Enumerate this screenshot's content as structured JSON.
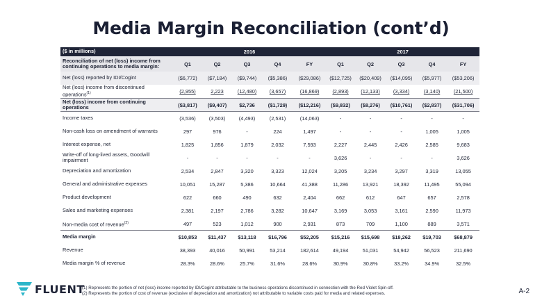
{
  "title": "Media Margin Reconciliation (cont’d)",
  "table": {
    "header": {
      "units": "($ in millions)",
      "year_2016": "2016",
      "year_2017": "2017",
      "section_label": "Reconciliation of net (loss) income from continuing operations to media margin:",
      "periods": [
        "Q1",
        "Q2",
        "Q3",
        "Q4",
        "FY",
        "Q1",
        "Q2",
        "Q3",
        "Q4",
        "FY"
      ]
    },
    "rows": [
      {
        "label": "Net (loss) reported by IDI/Cogint",
        "values": [
          "($6,772)",
          "($7,184)",
          "($9,744)",
          "($5,386)",
          "($29,086)",
          "($12,725)",
          "($20,409)",
          "($14,095)",
          "($5,977)",
          "($53,206)"
        ]
      },
      {
        "label": "Net (loss) income from discontinued operations",
        "label_sup": "(1)",
        "values": [
          "(2,955)",
          "2,223",
          "(12,480)",
          "(3,657)",
          "(16,869)",
          "(2,893)",
          "(12,133)",
          "(3,334)",
          "(3,140)",
          "(21,500)"
        ]
      },
      {
        "label": "Net (loss) income from continuing operations",
        "values": [
          "($3,817)",
          "($9,407)",
          "$2,736",
          "($1,729)",
          "($12,216)",
          "($9,832)",
          "($8,276)",
          "($10,761)",
          "($2,837)",
          "($31,706)"
        ]
      },
      {
        "label": "Income taxes",
        "values": [
          "(3,536)",
          "(3,503)",
          "(4,493)",
          "(2,531)",
          "(14,063)",
          "-",
          "-",
          "-",
          "-",
          "-"
        ]
      },
      {
        "label": "Non-cash loss on amendment of warrants",
        "values": [
          "297",
          "976",
          "-",
          "224",
          "1,497",
          "-",
          "-",
          "-",
          "1,005",
          "1,005"
        ]
      },
      {
        "label": "Interest expense, net",
        "values": [
          "1,825",
          "1,856",
          "1,879",
          "2,032",
          "7,593",
          "2,227",
          "2,445",
          "2,426",
          "2,585",
          "9,683"
        ]
      },
      {
        "label": "Write-off of long-lived assets, Goodwill impairment",
        "values": [
          "-",
          "-",
          "-",
          "-",
          "-",
          "3,626",
          "-",
          "-",
          "-",
          "3,626"
        ]
      },
      {
        "label": "Depreciation and amortization",
        "values": [
          "2,534",
          "2,847",
          "3,320",
          "3,323",
          "12,024",
          "3,205",
          "3,234",
          "3,297",
          "3,319",
          "13,055"
        ]
      },
      {
        "label": "General and administrative expenses",
        "values": [
          "10,051",
          "15,287",
          "5,386",
          "10,664",
          "41,388",
          "11,286",
          "13,921",
          "18,392",
          "11,495",
          "55,094"
        ]
      },
      {
        "label": "Product development",
        "values": [
          "622",
          "660",
          "490",
          "632",
          "2,404",
          "662",
          "612",
          "647",
          "657",
          "2,578"
        ]
      },
      {
        "label": "Sales and marketing expenses",
        "values": [
          "2,381",
          "2,197",
          "2,786",
          "3,282",
          "10,647",
          "3,169",
          "3,053",
          "3,161",
          "2,590",
          "11,973"
        ]
      },
      {
        "label": "Non-media cost of revenue",
        "label_sup": "(2)",
        "values": [
          "497",
          "523",
          "1,012",
          "900",
          "2,931",
          "873",
          "709",
          "1,100",
          "889",
          "3,571"
        ]
      },
      {
        "label": "Media margin",
        "values": [
          "$10,853",
          "$11,437",
          "$13,118",
          "$16,796",
          "$52,205",
          "$15,216",
          "$15,698",
          "$18,262",
          "$19,703",
          "$68,879"
        ]
      },
      {
        "label": "Revenue",
        "values": [
          "38,393",
          "40,016",
          "50,991",
          "53,214",
          "182,614",
          "49,194",
          "51,031",
          "54,942",
          "56,523",
          "211,690"
        ]
      },
      {
        "label": "Media margin % of revenue",
        "values": [
          "28.3%",
          "28.6%",
          "25.7%",
          "31.6%",
          "28.6%",
          "30.9%",
          "30.8%",
          "33.2%",
          "34.9%",
          "32.5%"
        ]
      }
    ]
  },
  "logo": {
    "text": "FLUENT",
    "color": "#2bb5c9"
  },
  "footnotes": [
    "(1) Represents the portion of net (loss) income reported by IDI/Cogint attributable to the business operations discontinued in connection with the Red Violet Spin-off.",
    "(2) Represents the portion of cost of revenue (exclusive of depreciation and amortization) not attributable to variable costs paid for media and related expenses."
  ],
  "page_number": "A-2"
}
